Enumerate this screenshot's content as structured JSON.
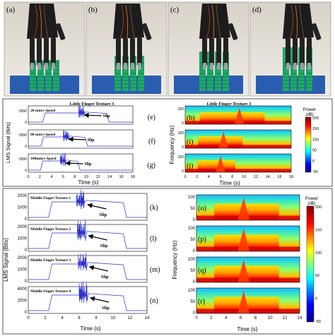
{
  "photos": {
    "panels": [
      {
        "label": "(a)"
      },
      {
        "label": "(b)"
      },
      {
        "label": "(c)"
      },
      {
        "label": "(d)"
      }
    ]
  },
  "middle_section": {
    "left": {
      "title": "Little Finger Texture 3",
      "ylabel": "LMS Signal (Bits)",
      "xlabel": "Time (s)",
      "xticks": [
        "0",
        "2",
        "4",
        "6",
        "8",
        "10",
        "12",
        "14",
        "16",
        "18"
      ],
      "slip_label": "Slip",
      "rows": [
        {
          "label": "(e)",
          "speed": "20 mm/s Speed",
          "yticks": [
            "2000",
            "0"
          ]
        },
        {
          "label": "(f)",
          "speed": "60 mm/s Speed",
          "yticks": [
            "2000",
            "0"
          ]
        },
        {
          "label": "(g)",
          "speed": "100mm/s Speed",
          "yticks": [
            "2000",
            "0"
          ]
        }
      ]
    },
    "right": {
      "title": "Little Finger Texture 3",
      "ylabel": "Frequency (Hz)",
      "xlabel": "Time (s)",
      "xticks": [
        "0",
        "2",
        "4",
        "6",
        "8",
        "10",
        "12",
        "14",
        "16",
        "18"
      ],
      "yticks": [
        "100",
        "0"
      ],
      "rows": [
        {
          "label": "(h)"
        },
        {
          "label": "(i)"
        },
        {
          "label": "(j)"
        }
      ],
      "colorbar": {
        "title": "Power",
        "unit": "(dB)",
        "ticks": [
          "200",
          "150",
          "100",
          "50",
          "0",
          "-50"
        ]
      }
    }
  },
  "bottom_section": {
    "left": {
      "ylabel": "LMS Signal (Bits)",
      "xlabel": "Time (s)",
      "xticks": [
        "0",
        "2",
        "4",
        "6",
        "8",
        "10",
        "12",
        "14"
      ],
      "slip_label": "Slip",
      "rows": [
        {
          "label": "(k)",
          "title": "Middle Finger Texture 1",
          "yticks": [
            "2000",
            "1000",
            "0"
          ]
        },
        {
          "label": "(l)",
          "title": "Middle Finger Texture 2",
          "yticks": [
            "2000",
            "1000",
            "0"
          ]
        },
        {
          "label": "(m)",
          "title": "Middle Finger Texture 3",
          "yticks": [
            "2000",
            "1000",
            "0"
          ]
        },
        {
          "label": "(n)",
          "title": "Middle Finger Texture 4",
          "yticks": [
            "4000",
            "2000",
            "0"
          ]
        }
      ]
    },
    "right": {
      "ylabel": "Frequency (Hz)",
      "xlabel": "Time (s)",
      "xticks": [
        "0",
        "2",
        "4",
        "6",
        "8",
        "10",
        "12",
        "14"
      ],
      "yticks": [
        "100",
        "50",
        "0"
      ],
      "rows": [
        {
          "label": "(o)"
        },
        {
          "label": "(p)"
        },
        {
          "label": "(q)"
        },
        {
          "label": "(r)"
        }
      ],
      "colorbar": {
        "title": "Power",
        "unit": "(dB)",
        "ticks": [
          "200",
          "150",
          "100",
          "50",
          "0",
          "-50"
        ]
      }
    }
  },
  "colors": {
    "signal": "#2e33c9",
    "jet": [
      "#00008f",
      "#0000ff",
      "#00ffff",
      "#ffff00",
      "#ff0000",
      "#800000"
    ],
    "mat": "#2a5db0",
    "texture": "#1fa866"
  }
}
